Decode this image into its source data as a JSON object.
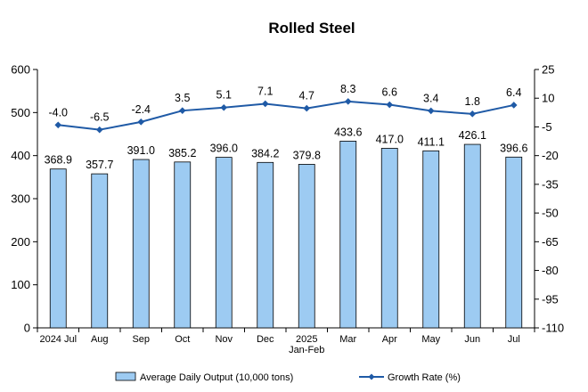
{
  "chart_data": {
    "type": "bar+line",
    "title": "Rolled Steel",
    "categories": [
      [
        "2024 Jul"
      ],
      [
        "Aug"
      ],
      [
        "Sep"
      ],
      [
        "Oct"
      ],
      [
        "Nov"
      ],
      [
        "Dec"
      ],
      [
        "2025",
        "Jan-Feb"
      ],
      [
        "Mar"
      ],
      [
        "Apr"
      ],
      [
        "May"
      ],
      [
        "Jun"
      ],
      [
        "Jul"
      ]
    ],
    "series": [
      {
        "name": "Average Daily Output (10,000 tons)",
        "type": "bar",
        "axis": "left",
        "color": "#9dcbf2",
        "values": [
          368.9,
          357.7,
          391.0,
          385.2,
          396.0,
          384.2,
          379.8,
          433.6,
          417.0,
          411.1,
          426.1,
          396.6
        ],
        "labels": [
          "368.9",
          "357.7",
          "391.0",
          "385.2",
          "396.0",
          "384.2",
          "379.8",
          "433.6",
          "417.0",
          "411.1",
          "426.1",
          "396.6"
        ]
      },
      {
        "name": "Growth Rate (%)",
        "type": "line",
        "axis": "right",
        "color": "#1f5aa6",
        "values": [
          -4.0,
          -6.5,
          -2.4,
          3.5,
          5.1,
          7.1,
          4.7,
          8.3,
          6.6,
          3.4,
          1.8,
          6.4
        ],
        "labels": [
          "-4.0",
          "-6.5",
          "-2.4",
          "3.5",
          "5.1",
          "7.1",
          "4.7",
          "8.3",
          "6.6",
          "3.4",
          "1.8",
          "6.4"
        ]
      }
    ],
    "y_left": {
      "min": 0,
      "max": 600,
      "ticks": [
        "0",
        "100",
        "200",
        "300",
        "400",
        "500",
        "600"
      ]
    },
    "y_right": {
      "min": -110,
      "max": 25,
      "ticks": [
        "-110",
        "-95",
        "-80",
        "-65",
        "-50",
        "-35",
        "-20",
        "-5",
        "10",
        "25"
      ]
    },
    "grid": false,
    "legend_position": "bottom"
  }
}
